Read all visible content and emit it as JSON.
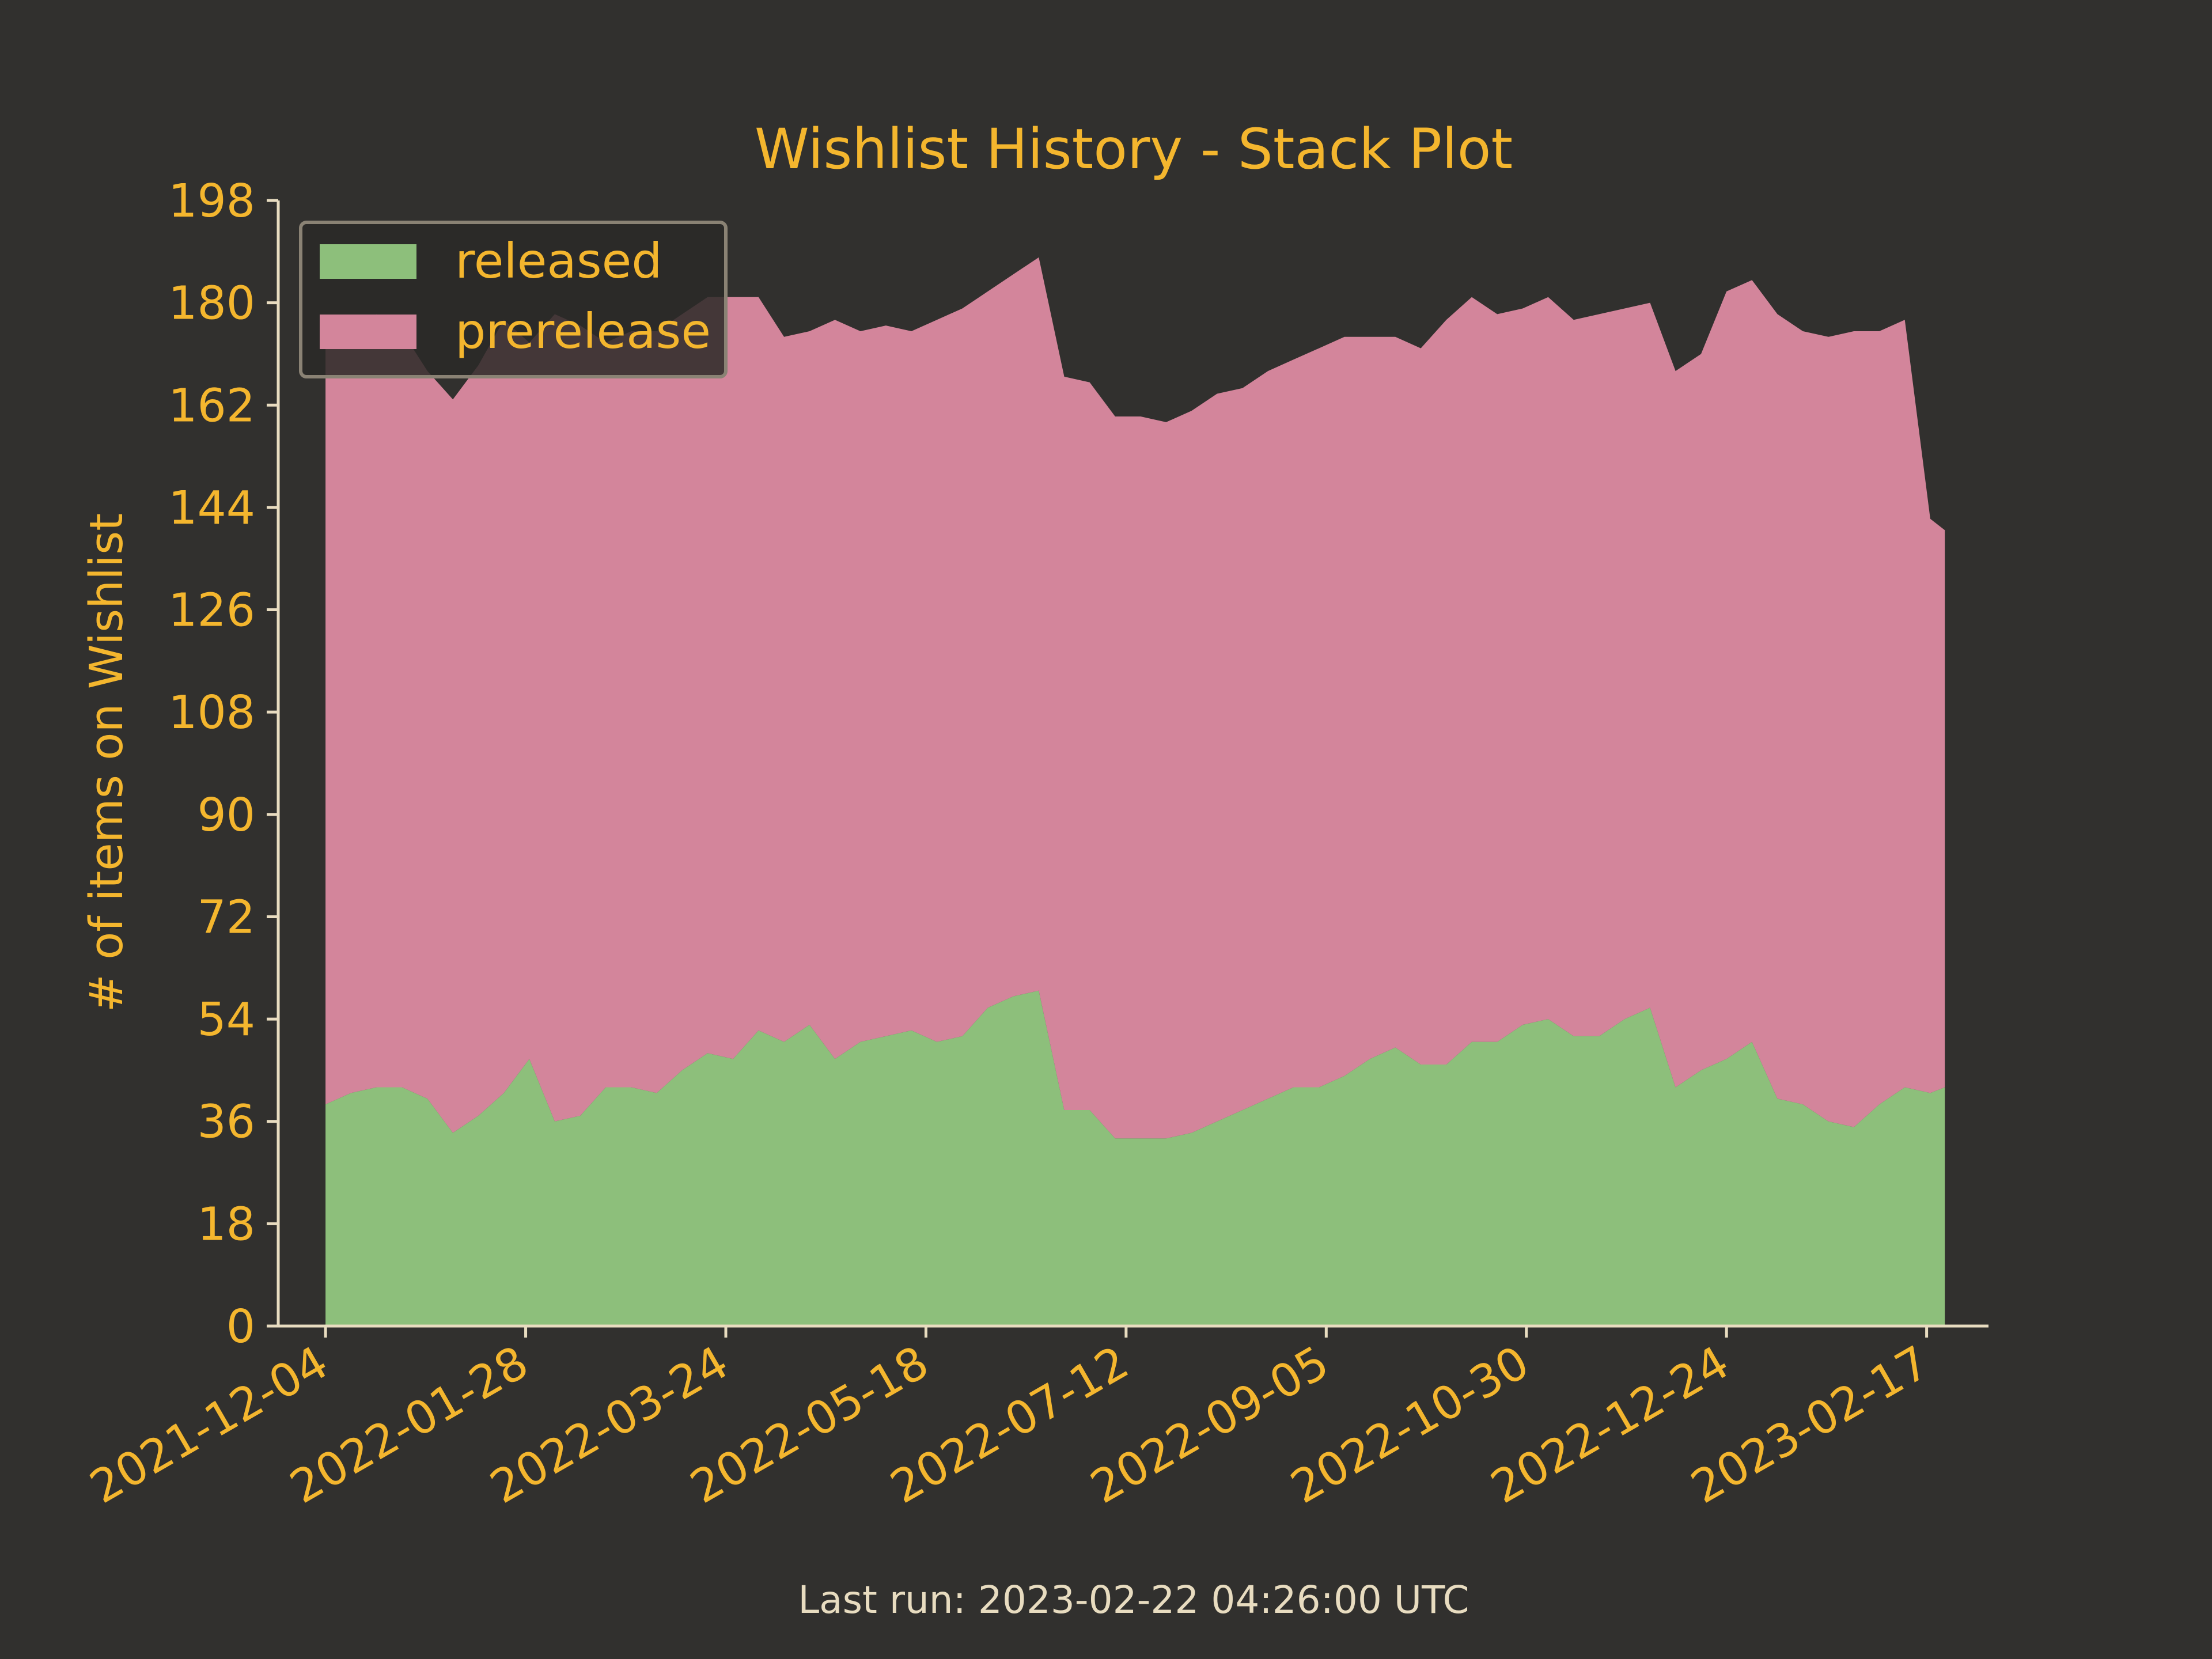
{
  "chart_data": {
    "type": "area",
    "stacked": true,
    "title": "Wishlist History - Stack Plot",
    "xlabel": "",
    "ylabel": "# of items on Wishlist",
    "x_ticks": [
      "2021-12-04",
      "2022-01-28",
      "2022-03-24",
      "2022-05-18",
      "2022-07-12",
      "2022-09-05",
      "2022-10-30",
      "2022-12-24",
      "2023-02-17"
    ],
    "y_ticks": [
      "0",
      "18",
      "36",
      "54",
      "72",
      "90",
      "108",
      "126",
      "144",
      "162",
      "180",
      "198"
    ],
    "ylim": [
      0,
      198
    ],
    "xlim": [
      "2021-11-21",
      "2023-03-06"
    ],
    "legend_position": "upper-left",
    "grid": false,
    "x": [
      "2021-12-04",
      "2021-12-11",
      "2021-12-18",
      "2021-12-25",
      "2022-01-01",
      "2022-01-08",
      "2022-01-15",
      "2022-01-22",
      "2022-01-29",
      "2022-02-05",
      "2022-02-12",
      "2022-02-19",
      "2022-02-26",
      "2022-03-05",
      "2022-03-12",
      "2022-03-19",
      "2022-03-26",
      "2022-04-02",
      "2022-04-09",
      "2022-04-16",
      "2022-04-23",
      "2022-04-30",
      "2022-05-07",
      "2022-05-14",
      "2022-05-21",
      "2022-05-28",
      "2022-06-04",
      "2022-06-11",
      "2022-06-18",
      "2022-06-25",
      "2022-07-02",
      "2022-07-09",
      "2022-07-16",
      "2022-07-23",
      "2022-07-30",
      "2022-08-06",
      "2022-08-13",
      "2022-08-20",
      "2022-08-27",
      "2022-09-03",
      "2022-09-10",
      "2022-09-17",
      "2022-09-24",
      "2022-10-01",
      "2022-10-08",
      "2022-10-15",
      "2022-10-22",
      "2022-10-29",
      "2022-11-05",
      "2022-11-12",
      "2022-11-19",
      "2022-11-26",
      "2022-12-03",
      "2022-12-10",
      "2022-12-17",
      "2022-12-24",
      "2022-12-31",
      "2023-01-07",
      "2023-01-14",
      "2023-01-21",
      "2023-01-28",
      "2023-02-04",
      "2023-02-11",
      "2023-02-18",
      "2023-02-22"
    ],
    "series": [
      {
        "name": "released",
        "color": "#8dbf7b",
        "values": [
          39,
          41,
          42,
          42,
          40,
          34,
          37,
          41,
          47,
          36,
          37,
          42,
          42,
          41,
          45,
          48,
          47,
          52,
          50,
          53,
          47,
          50,
          51,
          52,
          50,
          51,
          56,
          58,
          59,
          38,
          38,
          33,
          33,
          33,
          34,
          36,
          38,
          40,
          42,
          42,
          44,
          47,
          49,
          46,
          46,
          50,
          50,
          53,
          54,
          51,
          51,
          54,
          56,
          42,
          45,
          47,
          50,
          40,
          39,
          36,
          35,
          39,
          42,
          41,
          42
        ]
      },
      {
        "name": "prerelease",
        "color": "#d3859b",
        "values": [
          133,
          133,
          136,
          133,
          128,
          129,
          132,
          136,
          126,
          142,
          139,
          131,
          133,
          134,
          133,
          133,
          134,
          129,
          124,
          122,
          130,
          125,
          125,
          123,
          127,
          128,
          126,
          127,
          129,
          129,
          128,
          127,
          127,
          126,
          127,
          128,
          127,
          128,
          128,
          130,
          130,
          127,
          125,
          126,
          131,
          131,
          128,
          126,
          127,
          126,
          127,
          125,
          124,
          126,
          126,
          135,
          134,
          138,
          136,
          138,
          140,
          136,
          135,
          101,
          98
        ]
      }
    ]
  },
  "footer": {
    "last_run": "Last run: 2023-02-22 04:26:00 UTC"
  },
  "colors": {
    "background": "#31302e",
    "text": "#f4b62e",
    "axis": "#e8dcc0",
    "footer_text": "#e8dcc0",
    "released": "#8dbf7b",
    "prerelease": "#d3859b",
    "legend_border": "#8a8274",
    "legend_bg": "#2a2927"
  }
}
